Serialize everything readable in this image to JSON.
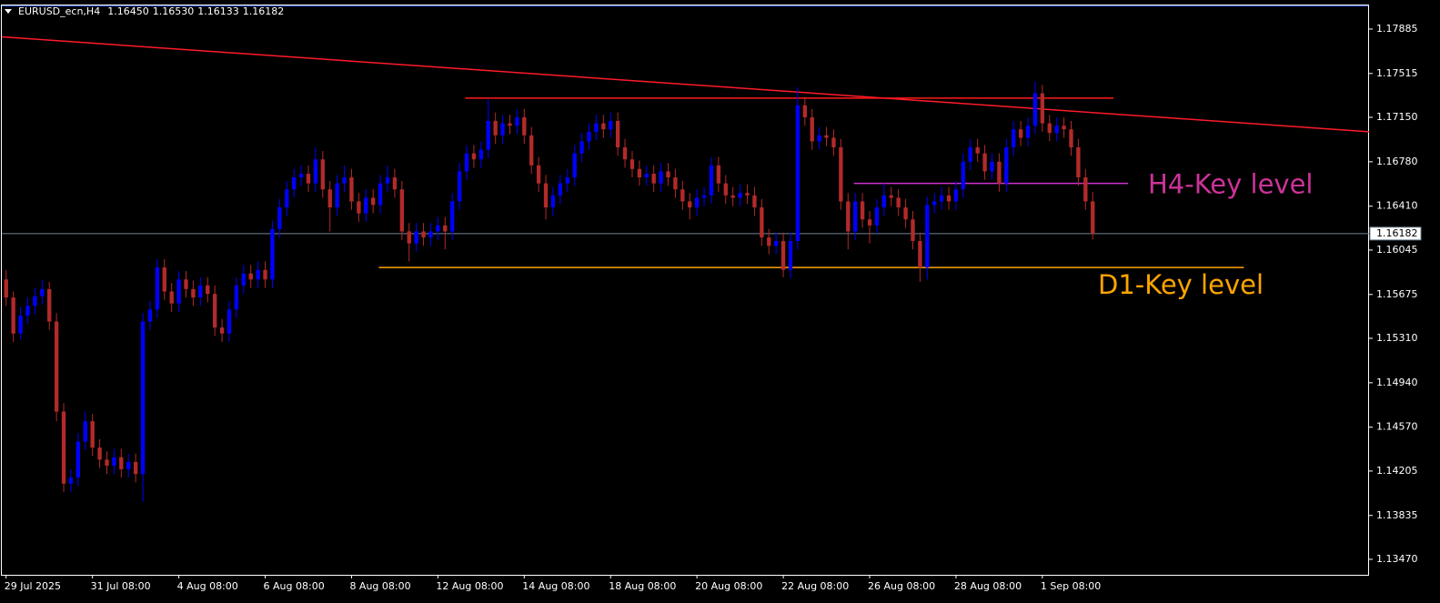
{
  "chart_data": {
    "type": "candlestick",
    "header_text": "EURUSD_ecn,H4",
    "header_values": [
      "1.16450",
      "1.16530",
      "1.16133",
      "1.16182"
    ],
    "bull_color": "#0000ff",
    "bear_color": "#b22a2a",
    "ylim": [
      1.13341,
      1.18089
    ],
    "yticks": [
      1.17885,
      1.17515,
      {
        "value": 1.1715,
        "label": "1.17150"
      },
      {
        "value": 1.1678,
        "label": "1.16780"
      },
      {
        "value": 1.1641,
        "label": "1.16410"
      },
      1.16045,
      1.15675,
      {
        "value": 1.1531,
        "label": "1.15310"
      },
      {
        "value": 1.1494,
        "label": "1.14940"
      },
      {
        "value": 1.1457,
        "label": "1.14570"
      },
      1.14205,
      1.13835,
      {
        "value": 1.1347,
        "label": "1.13470"
      }
    ],
    "xlim": [
      -0.6,
      189.4
    ],
    "xticks": [
      {
        "value": 0,
        "label": "29 Jul 2025"
      },
      {
        "value": 12,
        "label": "31 Jul 08:00"
      },
      {
        "value": 24,
        "label": "4 Aug 08:00"
      },
      {
        "value": 36,
        "label": "6 Aug 08:00"
      },
      {
        "value": 48,
        "label": "8 Aug 08:00"
      },
      {
        "value": 60,
        "label": "12 Aug 08:00"
      },
      {
        "value": 72,
        "label": "14 Aug 08:00"
      },
      {
        "value": 84,
        "label": "18 Aug 08:00"
      },
      {
        "value": 96,
        "label": "20 Aug 08:00"
      },
      {
        "value": 108,
        "label": "22 Aug 08:00"
      },
      {
        "value": 120,
        "label": "26 Aug 08:00"
      },
      {
        "value": 132,
        "label": "28 Aug 08:00"
      },
      {
        "value": 144,
        "label": "1 Sep 08:00"
      }
    ],
    "current_price": {
      "value": 1.16182,
      "label": "1.16182",
      "color": "#6f8596"
    },
    "lines": [
      {
        "color": "#ff1a2a",
        "x": [
          -0.6,
          189.4
        ],
        "values": [
          1.1782,
          1.1703
        ]
      },
      {
        "color": "#ff1a1a",
        "x": [
          63.8,
          153.9
        ],
        "values": [
          1.1731,
          1.1731
        ]
      },
      {
        "color": "#cc33cc",
        "x": [
          117.8,
          155.9
        ],
        "values": [
          1.166,
          1.166
        ]
      },
      {
        "color": "#ffa500",
        "x": [
          51.8,
          172
        ],
        "values": [
          1.159,
          1.159
        ]
      }
    ],
    "annotations": [
      {
        "text": "H4-Key level",
        "color": "#cc3399"
      },
      {
        "text": "D1-Key level",
        "color": "#ffa500"
      }
    ],
    "ohlc": [
      [
        1.158,
        1.1588,
        1.1558,
        1.1565
      ],
      [
        1.1565,
        1.157,
        1.1528,
        1.1535
      ],
      [
        1.1535,
        1.1557,
        1.153,
        1.155
      ],
      [
        1.155,
        1.1565,
        1.1543,
        1.1558
      ],
      [
        1.1558,
        1.1573,
        1.1551,
        1.1566
      ],
      [
        1.1566,
        1.158,
        1.1559,
        1.1572
      ],
      [
        1.1572,
        1.1578,
        1.1538,
        1.1545
      ],
      [
        1.1545,
        1.1552,
        1.1462,
        1.147
      ],
      [
        1.147,
        1.1477,
        1.1403,
        1.141
      ],
      [
        1.141,
        1.1422,
        1.1403,
        1.1415
      ],
      [
        1.1415,
        1.1452,
        1.1408,
        1.1445
      ],
      [
        1.1445,
        1.147,
        1.1438,
        1.1462
      ],
      [
        1.1462,
        1.1468,
        1.1433,
        1.144
      ],
      [
        1.144,
        1.1447,
        1.1423,
        1.143
      ],
      [
        1.143,
        1.1437,
        1.1418,
        1.1425
      ],
      [
        1.1425,
        1.1439,
        1.1418,
        1.1432
      ],
      [
        1.1432,
        1.1439,
        1.1415,
        1.1422
      ],
      [
        1.1422,
        1.1435,
        1.1415,
        1.1428
      ],
      [
        1.1428,
        1.1435,
        1.1411,
        1.1418
      ],
      [
        1.1418,
        1.1552,
        1.1395,
        1.1545
      ],
      [
        1.1545,
        1.1562,
        1.1538,
        1.1555
      ],
      [
        1.1555,
        1.1597,
        1.1548,
        1.159
      ],
      [
        1.159,
        1.1597,
        1.1563,
        1.157
      ],
      [
        1.157,
        1.1577,
        1.1553,
        1.156
      ],
      [
        1.156,
        1.1587,
        1.1553,
        1.158
      ],
      [
        1.158,
        1.1587,
        1.1565,
        1.1572
      ],
      [
        1.1572,
        1.1579,
        1.1558,
        1.1565
      ],
      [
        1.1565,
        1.1582,
        1.1558,
        1.1575
      ],
      [
        1.1575,
        1.1582,
        1.1561,
        1.1568
      ],
      [
        1.1568,
        1.1575,
        1.1533,
        1.154
      ],
      [
        1.154,
        1.1547,
        1.1528,
        1.1535
      ],
      [
        1.1535,
        1.1562,
        1.1528,
        1.1555
      ],
      [
        1.1555,
        1.1582,
        1.1548,
        1.1575
      ],
      [
        1.1575,
        1.1592,
        1.1568,
        1.1585
      ],
      [
        1.1585,
        1.1592,
        1.1573,
        1.158
      ],
      [
        1.158,
        1.1595,
        1.1573,
        1.1588
      ],
      [
        1.1588,
        1.1595,
        1.1573,
        1.158
      ],
      [
        1.158,
        1.1629,
        1.1573,
        1.1622
      ],
      [
        1.1622,
        1.1647,
        1.1615,
        1.164
      ],
      [
        1.164,
        1.1662,
        1.1633,
        1.1655
      ],
      [
        1.1655,
        1.1672,
        1.1648,
        1.1665
      ],
      [
        1.1665,
        1.1675,
        1.1658,
        1.1668
      ],
      [
        1.1668,
        1.1675,
        1.1653,
        1.166
      ],
      [
        1.166,
        1.169,
        1.1653,
        1.168
      ],
      [
        1.168,
        1.1687,
        1.1648,
        1.1655
      ],
      [
        1.1655,
        1.1662,
        1.162,
        1.164
      ],
      [
        1.164,
        1.1667,
        1.1633,
        1.166
      ],
      [
        1.166,
        1.1675,
        1.1653,
        1.1665
      ],
      [
        1.1665,
        1.1672,
        1.1638,
        1.1645
      ],
      [
        1.1645,
        1.1652,
        1.1628,
        1.1635
      ],
      [
        1.1635,
        1.1655,
        1.1628,
        1.1648
      ],
      [
        1.1648,
        1.1655,
        1.1635,
        1.1642
      ],
      [
        1.1642,
        1.1667,
        1.1635,
        1.166
      ],
      [
        1.166,
        1.1675,
        1.1653,
        1.1665
      ],
      [
        1.1665,
        1.1672,
        1.1648,
        1.1655
      ],
      [
        1.1655,
        1.1662,
        1.1613,
        1.162
      ],
      [
        1.162,
        1.1627,
        1.1595,
        1.161
      ],
      [
        1.161,
        1.1627,
        1.1603,
        1.162
      ],
      [
        1.162,
        1.1627,
        1.1608,
        1.1615
      ],
      [
        1.1615,
        1.1627,
        1.1608,
        1.162
      ],
      [
        1.162,
        1.1632,
        1.1613,
        1.1625
      ],
      [
        1.1625,
        1.1632,
        1.1605,
        1.162
      ],
      [
        1.162,
        1.1652,
        1.1613,
        1.1645
      ],
      [
        1.1645,
        1.1677,
        1.1638,
        1.167
      ],
      [
        1.167,
        1.1692,
        1.1663,
        1.1685
      ],
      [
        1.1685,
        1.1692,
        1.1673,
        1.168
      ],
      [
        1.168,
        1.1695,
        1.1673,
        1.1688
      ],
      [
        1.1688,
        1.173,
        1.1681,
        1.1712
      ],
      [
        1.1712,
        1.1719,
        1.1693,
        1.17
      ],
      [
        1.17,
        1.1717,
        1.1693,
        1.171
      ],
      [
        1.171,
        1.1717,
        1.1701,
        1.1708
      ],
      [
        1.1708,
        1.1722,
        1.1701,
        1.1715
      ],
      [
        1.1715,
        1.1722,
        1.1693,
        1.17
      ],
      [
        1.17,
        1.1707,
        1.1668,
        1.1675
      ],
      [
        1.1675,
        1.1682,
        1.1653,
        1.166
      ],
      [
        1.166,
        1.1667,
        1.163,
        1.164
      ],
      [
        1.164,
        1.1657,
        1.1633,
        1.165
      ],
      [
        1.165,
        1.1667,
        1.1643,
        1.166
      ],
      [
        1.166,
        1.1672,
        1.1653,
        1.1665
      ],
      [
        1.1665,
        1.1692,
        1.1658,
        1.1685
      ],
      [
        1.1685,
        1.1702,
        1.1678,
        1.1695
      ],
      [
        1.1695,
        1.171,
        1.1688,
        1.1703
      ],
      [
        1.1703,
        1.1717,
        1.1696,
        1.171
      ],
      [
        1.171,
        1.1717,
        1.1698,
        1.1705
      ],
      [
        1.1705,
        1.1719,
        1.1698,
        1.1712
      ],
      [
        1.1712,
        1.1719,
        1.1683,
        1.169
      ],
      [
        1.169,
        1.1697,
        1.1673,
        1.168
      ],
      [
        1.168,
        1.1687,
        1.1665,
        1.1672
      ],
      [
        1.1672,
        1.1679,
        1.1658,
        1.1665
      ],
      [
        1.1665,
        1.1675,
        1.1658,
        1.1668
      ],
      [
        1.1668,
        1.1675,
        1.1653,
        1.166
      ],
      [
        1.166,
        1.1677,
        1.1653,
        1.167
      ],
      [
        1.167,
        1.1677,
        1.1658,
        1.1665
      ],
      [
        1.1665,
        1.1672,
        1.1648,
        1.1655
      ],
      [
        1.1655,
        1.1662,
        1.1638,
        1.1645
      ],
      [
        1.1645,
        1.1652,
        1.163,
        1.164
      ],
      [
        1.164,
        1.1655,
        1.1633,
        1.1648
      ],
      [
        1.1648,
        1.1657,
        1.1641,
        1.165
      ],
      [
        1.165,
        1.1682,
        1.1643,
        1.1675
      ],
      [
        1.1675,
        1.1682,
        1.1653,
        1.166
      ],
      [
        1.166,
        1.1667,
        1.1643,
        1.165
      ],
      [
        1.165,
        1.1657,
        1.1641,
        1.1648
      ],
      [
        1.1648,
        1.1659,
        1.1641,
        1.1652
      ],
      [
        1.1652,
        1.1659,
        1.1643,
        1.165
      ],
      [
        1.165,
        1.1657,
        1.1633,
        1.164
      ],
      [
        1.164,
        1.1647,
        1.1608,
        1.1615
      ],
      [
        1.1615,
        1.1622,
        1.1601,
        1.1608
      ],
      [
        1.1608,
        1.1619,
        1.1601,
        1.1612
      ],
      [
        1.1612,
        1.1619,
        1.1582,
        1.1588
      ],
      [
        1.1588,
        1.1619,
        1.1581,
        1.1612
      ],
      [
        1.1612,
        1.174,
        1.1605,
        1.1725
      ],
      [
        1.1725,
        1.1732,
        1.1708,
        1.1715
      ],
      [
        1.1715,
        1.1722,
        1.1688,
        1.1695
      ],
      [
        1.1695,
        1.1707,
        1.1688,
        1.17
      ],
      [
        1.17,
        1.1707,
        1.1691,
        1.1698
      ],
      [
        1.1698,
        1.1705,
        1.1683,
        1.169
      ],
      [
        1.169,
        1.1697,
        1.1638,
        1.1645
      ],
      [
        1.1645,
        1.1652,
        1.1605,
        1.162
      ],
      [
        1.162,
        1.1652,
        1.1613,
        1.1645
      ],
      [
        1.1645,
        1.1652,
        1.1623,
        1.163
      ],
      [
        1.163,
        1.1637,
        1.161,
        1.1625
      ],
      [
        1.1625,
        1.1647,
        1.1618,
        1.164
      ],
      [
        1.164,
        1.166,
        1.1633,
        1.165
      ],
      [
        1.165,
        1.1657,
        1.1641,
        1.1648
      ],
      [
        1.1648,
        1.1655,
        1.1633,
        1.164
      ],
      [
        1.164,
        1.1647,
        1.1623,
        1.163
      ],
      [
        1.163,
        1.1637,
        1.1605,
        1.1612
      ],
      [
        1.1612,
        1.1619,
        1.1578,
        1.159
      ],
      [
        1.159,
        1.1649,
        1.158,
        1.1642
      ],
      [
        1.1642,
        1.1652,
        1.1635,
        1.1645
      ],
      [
        1.1645,
        1.1657,
        1.1638,
        1.165
      ],
      [
        1.165,
        1.1657,
        1.1638,
        1.1645
      ],
      [
        1.1645,
        1.1662,
        1.1638,
        1.1655
      ],
      [
        1.1655,
        1.1685,
        1.1648,
        1.1678
      ],
      [
        1.1678,
        1.1697,
        1.1671,
        1.169
      ],
      [
        1.169,
        1.1697,
        1.1678,
        1.1685
      ],
      [
        1.1685,
        1.1692,
        1.1663,
        1.167
      ],
      [
        1.167,
        1.1685,
        1.1663,
        1.1678
      ],
      [
        1.1678,
        1.1685,
        1.1653,
        1.166
      ],
      [
        1.166,
        1.1697,
        1.1653,
        1.169
      ],
      [
        1.169,
        1.1712,
        1.1683,
        1.1705
      ],
      [
        1.1705,
        1.1712,
        1.1691,
        1.1698
      ],
      [
        1.1698,
        1.1715,
        1.1691,
        1.1708
      ],
      [
        1.1708,
        1.1745,
        1.1701,
        1.1735
      ],
      [
        1.1735,
        1.1742,
        1.1703,
        1.171
      ],
      [
        1.171,
        1.1717,
        1.1695,
        1.1702
      ],
      [
        1.1702,
        1.1715,
        1.1695,
        1.1708
      ],
      [
        1.1708,
        1.1715,
        1.1698,
        1.1705
      ],
      [
        1.1705,
        1.1712,
        1.1683,
        1.169
      ],
      [
        1.169,
        1.1697,
        1.1658,
        1.1665
      ],
      [
        1.1665,
        1.1672,
        1.1638,
        1.1645
      ],
      [
        1.1645,
        1.1653,
        1.16133,
        1.16182
      ]
    ]
  }
}
